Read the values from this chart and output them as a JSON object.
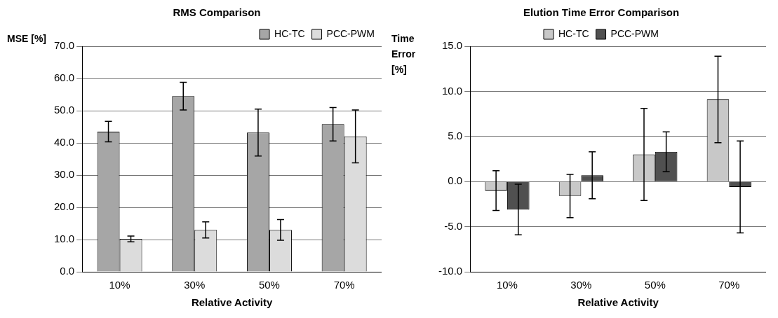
{
  "chart_data": [
    {
      "type": "bar",
      "title": "RMS Comparison",
      "xlabel": "Relative Activity",
      "ylabel": "MSE [%]",
      "categories": [
        "10%",
        "30%",
        "50%",
        "70%"
      ],
      "series": [
        {
          "name": "HC-TC",
          "color": "#a6a6a6",
          "values": [
            43.5,
            54.5,
            43.2,
            45.8
          ],
          "errors": [
            3.2,
            4.3,
            7.3,
            5.2
          ]
        },
        {
          "name": "PCC-PWM",
          "color": "#dcdcdc",
          "values": [
            10.2,
            13.0,
            13.0,
            42.0
          ],
          "errors": [
            0.9,
            2.5,
            3.2,
            8.2
          ]
        }
      ],
      "ylim": [
        0,
        70
      ],
      "yticks": [
        {
          "value": 0,
          "label": "0.0"
        },
        {
          "value": 10,
          "label": "10.0"
        },
        {
          "value": 20,
          "label": "20.0"
        },
        {
          "value": 30,
          "label": "30.0"
        },
        {
          "value": 40,
          "label": "40.0"
        },
        {
          "value": 50,
          "label": "50.0"
        },
        {
          "value": 60,
          "label": "60.0"
        },
        {
          "value": 70,
          "label": "70.0"
        }
      ],
      "grid": "y",
      "legend": "top right"
    },
    {
      "type": "bar",
      "title": "Elution Time Error Comparison",
      "xlabel": "Relative Activity",
      "ylabel": "Time Error [%]",
      "categories": [
        "10%",
        "30%",
        "50%",
        "70%"
      ],
      "series": [
        {
          "name": "HC-TC",
          "color": "#c8c8c8",
          "values": [
            -1.0,
            -1.6,
            3.0,
            9.1
          ],
          "errors": [
            2.2,
            2.4,
            5.1,
            4.8
          ]
        },
        {
          "name": "PCC-PWM",
          "color": "#505050",
          "values": [
            -3.1,
            0.7,
            3.3,
            -0.6
          ],
          "errors": [
            2.8,
            2.6,
            2.2,
            5.1
          ]
        }
      ],
      "ylim": [
        -10,
        15
      ],
      "yticks": [
        {
          "value": -10,
          "label": "-10.0"
        },
        {
          "value": -5,
          "label": "-5.0"
        },
        {
          "value": 0,
          "label": "0.0"
        },
        {
          "value": 5,
          "label": "5.0"
        },
        {
          "value": 10,
          "label": "10.0"
        },
        {
          "value": 15,
          "label": "15.0"
        }
      ],
      "grid": "y",
      "legend": "top"
    }
  ]
}
